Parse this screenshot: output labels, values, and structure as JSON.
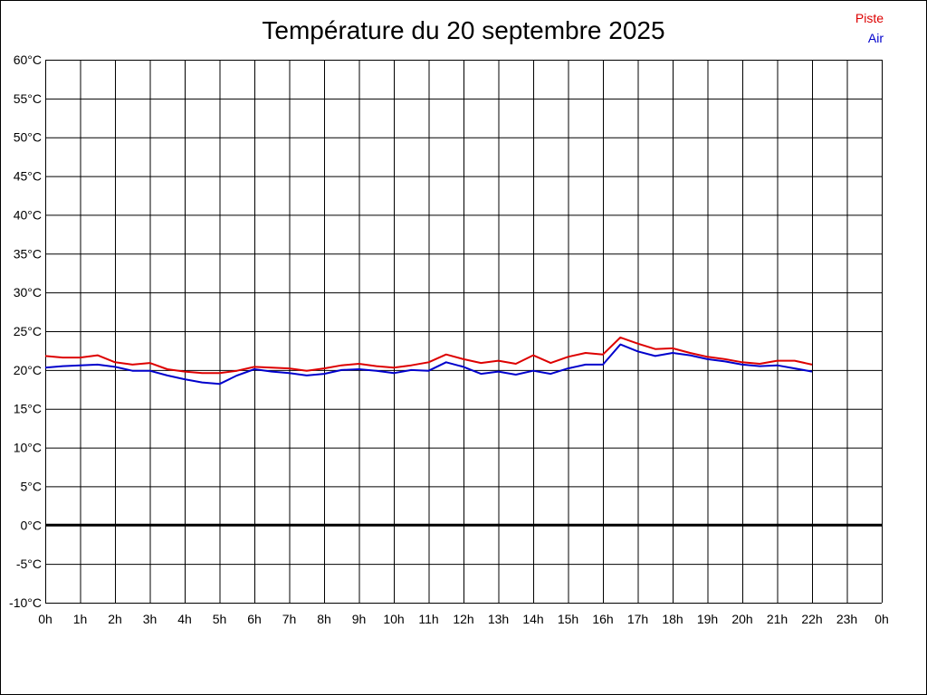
{
  "chart_data": {
    "type": "line",
    "title": "Température du 20 septembre 2025",
    "xlabel": "",
    "ylabel": "",
    "x_unit": "hour",
    "xlim": [
      0,
      24
    ],
    "ylim": [
      -10,
      60
    ],
    "x_tick_values": [
      0,
      1,
      2,
      3,
      4,
      5,
      6,
      7,
      8,
      9,
      10,
      11,
      12,
      13,
      14,
      15,
      16,
      17,
      18,
      19,
      20,
      21,
      22,
      23,
      24
    ],
    "x_tick_labels": [
      "0h",
      "1h",
      "2h",
      "3h",
      "4h",
      "5h",
      "6h",
      "7h",
      "8h",
      "9h",
      "10h",
      "11h",
      "12h",
      "13h",
      "14h",
      "15h",
      "16h",
      "17h",
      "18h",
      "19h",
      "20h",
      "21h",
      "22h",
      "23h",
      "0h"
    ],
    "y_tick_values": [
      60,
      55,
      50,
      45,
      40,
      35,
      30,
      25,
      20,
      15,
      10,
      5,
      0,
      -5,
      -10
    ],
    "y_tick_labels": [
      "60°C",
      "55°C",
      "50°C",
      "45°C",
      "40°C",
      "35°C",
      "30°C",
      "25°C",
      "20°C",
      "15°C",
      "10°C",
      "5°C",
      "0°C",
      "-5°C",
      "-10°C"
    ],
    "grid": true,
    "zero_line": true,
    "legend_position": "top-right",
    "x": [
      0,
      0.5,
      1,
      1.5,
      2,
      2.5,
      3,
      3.5,
      4,
      4.5,
      5,
      5.5,
      6,
      6.5,
      7,
      7.5,
      8,
      8.5,
      9,
      9.5,
      10,
      10.5,
      11,
      11.5,
      12,
      12.5,
      13,
      13.5,
      14,
      14.5,
      15,
      15.5,
      16,
      16.5,
      17,
      17.5,
      18,
      18.5,
      19,
      19.5,
      20,
      20.5,
      21,
      21.5,
      22
    ],
    "series": [
      {
        "name": "Piste",
        "color": "#dd0000",
        "values": [
          21.8,
          21.6,
          21.6,
          21.9,
          21.0,
          20.7,
          20.9,
          20.1,
          19.8,
          19.6,
          19.6,
          19.9,
          20.4,
          20.3,
          20.2,
          19.9,
          20.2,
          20.6,
          20.8,
          20.5,
          20.3,
          20.6,
          21.0,
          22.0,
          21.4,
          20.9,
          21.2,
          20.8,
          21.9,
          20.9,
          21.7,
          22.2,
          22.0,
          24.2,
          23.4,
          22.7,
          22.8,
          22.2,
          21.7,
          21.4,
          21.0,
          20.8,
          21.2,
          21.2,
          20.7
        ]
      },
      {
        "name": "Air",
        "color": "#0000cc",
        "values": [
          20.3,
          20.5,
          20.6,
          20.7,
          20.4,
          19.9,
          19.9,
          19.3,
          18.8,
          18.4,
          18.2,
          19.3,
          20.1,
          19.8,
          19.6,
          19.3,
          19.5,
          20.0,
          20.1,
          19.9,
          19.6,
          20.0,
          19.9,
          21.0,
          20.4,
          19.5,
          19.8,
          19.4,
          19.9,
          19.5,
          20.2,
          20.7,
          20.7,
          23.3,
          22.4,
          21.8,
          22.2,
          21.9,
          21.4,
          21.1,
          20.7,
          20.5,
          20.6,
          20.2,
          19.8
        ]
      }
    ]
  }
}
